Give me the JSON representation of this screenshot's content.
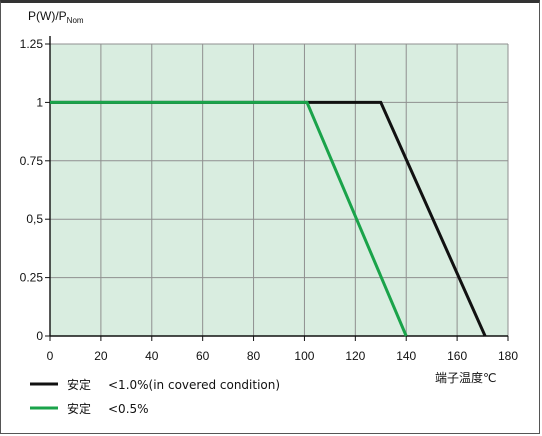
{
  "chart_data": {
    "type": "line",
    "ylabel_main": "P(W)/P",
    "ylabel_sub": "Nom",
    "xlabel": "端子温度℃",
    "xlim": [
      0,
      180
    ],
    "ylim": [
      0,
      1.25
    ],
    "x_ticks": [
      {
        "value": 0,
        "label": "0"
      },
      {
        "value": 20,
        "label": "20"
      },
      {
        "value": 40,
        "label": "40"
      },
      {
        "value": 60,
        "label": "60"
      },
      {
        "value": 80,
        "label": "80"
      },
      {
        "value": 100,
        "label": "100"
      },
      {
        "value": 120,
        "label": "120"
      },
      {
        "value": 140,
        "label": "140"
      },
      {
        "value": 160,
        "label": "160"
      },
      {
        "value": 180,
        "label": "180"
      }
    ],
    "y_ticks": [
      {
        "value": 0,
        "label": "0"
      },
      {
        "value": 0.25,
        "label": "0.25"
      },
      {
        "value": 0.5,
        "label": "0,5"
      },
      {
        "value": 0.75,
        "label": "0.75"
      },
      {
        "value": 1,
        "label": "1"
      },
      {
        "value": 1.25,
        "label": "1.25"
      }
    ],
    "grid": true,
    "plot_background": "#d9ede0",
    "grid_color": "#8f8f8f",
    "series": [
      {
        "name": "安定",
        "note": "<1.0%(in covered condition)",
        "color": "#111111",
        "points": [
          [
            0,
            1
          ],
          [
            130,
            1
          ],
          [
            171,
            0
          ]
        ]
      },
      {
        "name": "安定",
        "note": "<0.5%",
        "color": "#1aa34a",
        "points": [
          [
            0,
            1
          ],
          [
            101,
            1
          ],
          [
            140,
            0
          ]
        ]
      }
    ],
    "legend_position": "bottom-left"
  }
}
